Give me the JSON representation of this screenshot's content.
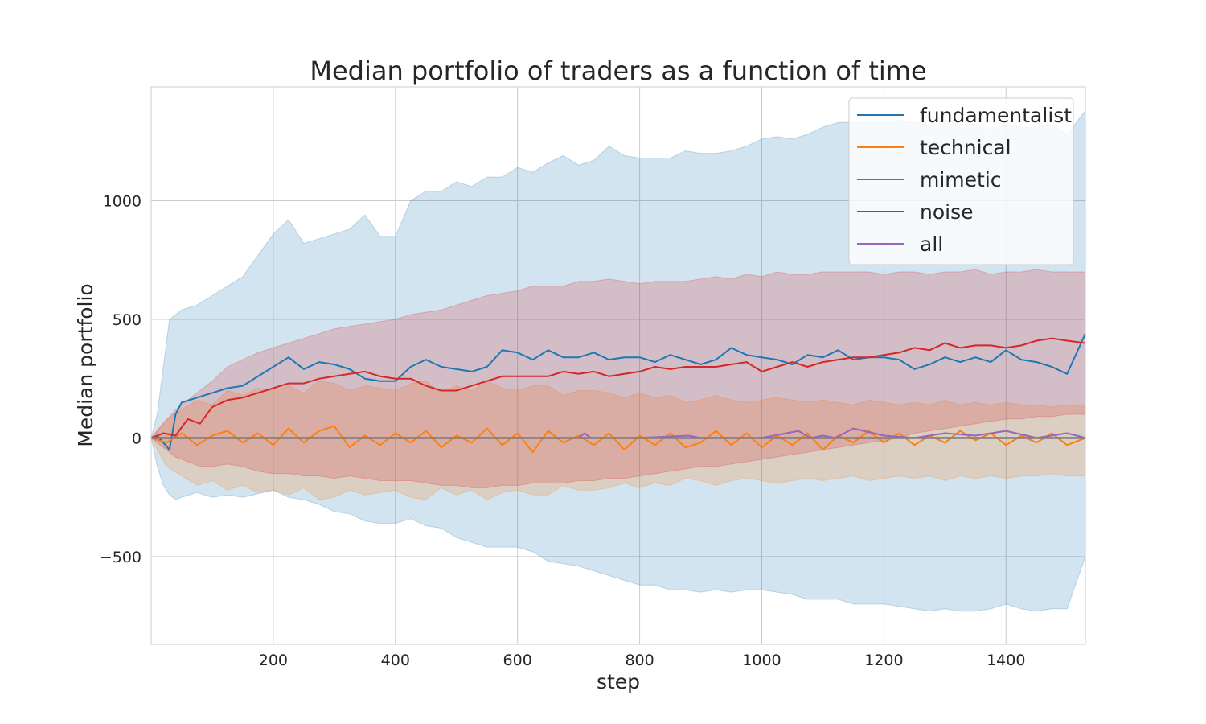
{
  "chart_data": {
    "type": "line",
    "title": "Median portfolio of traders as a function of time",
    "xlabel": "step",
    "ylabel": "Median portfolio",
    "xlim": [
      0,
      1530
    ],
    "ylim": [
      -870,
      1480
    ],
    "xticks": [
      200,
      400,
      600,
      800,
      1000,
      1200,
      1400
    ],
    "yticks": [
      -500,
      0,
      500,
      1000
    ],
    "ytick_labels": [
      "−500",
      "0",
      "500",
      "1000"
    ],
    "grid": true,
    "legend_position": "top-right",
    "series": [
      {
        "name": "fundamentalist",
        "color": "#1f77b4",
        "x": [
          0,
          10,
          20,
          30,
          40,
          50,
          75,
          100,
          125,
          150,
          200,
          225,
          250,
          275,
          300,
          325,
          350,
          375,
          400,
          425,
          450,
          475,
          500,
          525,
          550,
          575,
          600,
          625,
          650,
          675,
          700,
          725,
          750,
          775,
          800,
          825,
          850,
          875,
          900,
          925,
          950,
          975,
          1000,
          1025,
          1050,
          1075,
          1100,
          1125,
          1150,
          1175,
          1200,
          1225,
          1250,
          1275,
          1300,
          1325,
          1350,
          1375,
          1400,
          1425,
          1450,
          1475,
          1500,
          1530
        ],
        "values": [
          0,
          10,
          -20,
          -50,
          100,
          150,
          170,
          190,
          210,
          220,
          300,
          340,
          290,
          320,
          310,
          290,
          250,
          240,
          240,
          300,
          330,
          300,
          290,
          280,
          300,
          370,
          360,
          330,
          370,
          340,
          340,
          360,
          330,
          340,
          340,
          320,
          350,
          330,
          310,
          330,
          380,
          350,
          340,
          330,
          310,
          350,
          340,
          370,
          330,
          340,
          340,
          330,
          290,
          310,
          340,
          320,
          340,
          320,
          370,
          330,
          320,
          300,
          270,
          440
        ],
        "band_upper": [
          0,
          100,
          300,
          500,
          520,
          540,
          560,
          600,
          640,
          680,
          860,
          920,
          820,
          840,
          860,
          880,
          940,
          850,
          850,
          1000,
          1040,
          1040,
          1080,
          1060,
          1100,
          1100,
          1140,
          1120,
          1160,
          1190,
          1150,
          1170,
          1230,
          1190,
          1180,
          1180,
          1180,
          1210,
          1200,
          1200,
          1210,
          1230,
          1260,
          1270,
          1260,
          1280,
          1310,
          1330,
          1330,
          1330,
          1330,
          1340,
          1330,
          1320,
          1340,
          1320,
          1320,
          1300,
          1320,
          1310,
          1310,
          1320,
          1280,
          1380
        ],
        "band_lower": [
          0,
          -120,
          -200,
          -240,
          -260,
          -250,
          -230,
          -250,
          -240,
          -250,
          -220,
          -250,
          -260,
          -280,
          -310,
          -320,
          -350,
          -360,
          -360,
          -340,
          -370,
          -380,
          -420,
          -440,
          -460,
          -460,
          -460,
          -480,
          -520,
          -530,
          -540,
          -560,
          -580,
          -600,
          -620,
          -620,
          -640,
          -640,
          -650,
          -640,
          -650,
          -640,
          -640,
          -650,
          -660,
          -680,
          -680,
          -680,
          -700,
          -700,
          -700,
          -710,
          -720,
          -730,
          -720,
          -730,
          -730,
          -720,
          -700,
          -720,
          -730,
          -720,
          -720,
          -500
        ]
      },
      {
        "name": "technical",
        "color": "#ff7f0e",
        "x": [
          0,
          25,
          50,
          75,
          100,
          125,
          150,
          175,
          200,
          225,
          250,
          275,
          300,
          325,
          350,
          375,
          400,
          425,
          450,
          475,
          500,
          525,
          550,
          575,
          600,
          625,
          650,
          675,
          700,
          725,
          750,
          775,
          800,
          825,
          850,
          875,
          900,
          925,
          950,
          975,
          1000,
          1025,
          1050,
          1075,
          1100,
          1125,
          1150,
          1175,
          1200,
          1225,
          1250,
          1275,
          1300,
          1325,
          1350,
          1375,
          1400,
          1425,
          1450,
          1475,
          1500,
          1530
        ],
        "values": [
          0,
          -20,
          20,
          -30,
          10,
          30,
          -20,
          20,
          -30,
          40,
          -20,
          30,
          50,
          -40,
          10,
          -30,
          20,
          -20,
          30,
          -40,
          10,
          -20,
          40,
          -30,
          20,
          -60,
          30,
          -20,
          10,
          -30,
          20,
          -50,
          10,
          -30,
          20,
          -40,
          -20,
          30,
          -30,
          20,
          -40,
          10,
          -30,
          20,
          -50,
          10,
          -20,
          30,
          -20,
          20,
          -30,
          10,
          -20,
          30,
          -10,
          20,
          -30,
          10,
          -20,
          20,
          -30,
          0
        ],
        "band_upper": [
          0,
          80,
          120,
          160,
          140,
          200,
          180,
          210,
          200,
          220,
          190,
          240,
          230,
          200,
          220,
          210,
          200,
          230,
          240,
          190,
          220,
          200,
          240,
          210,
          200,
          220,
          220,
          180,
          200,
          200,
          190,
          170,
          190,
          170,
          180,
          150,
          160,
          180,
          160,
          150,
          160,
          170,
          160,
          150,
          160,
          150,
          140,
          160,
          150,
          140,
          150,
          140,
          160,
          140,
          150,
          140,
          150,
          140,
          140,
          130,
          140,
          140
        ],
        "band_lower": [
          0,
          -120,
          -160,
          -200,
          -180,
          -220,
          -200,
          -230,
          -220,
          -240,
          -210,
          -260,
          -250,
          -220,
          -240,
          -230,
          -220,
          -250,
          -260,
          -210,
          -240,
          -220,
          -260,
          -230,
          -220,
          -240,
          -240,
          -200,
          -220,
          -220,
          -210,
          -190,
          -210,
          -190,
          -200,
          -170,
          -180,
          -200,
          -180,
          -170,
          -180,
          -190,
          -180,
          -170,
          -180,
          -170,
          -160,
          -180,
          -170,
          -160,
          -170,
          -160,
          -180,
          -160,
          -170,
          -160,
          -170,
          -160,
          -160,
          -150,
          -160,
          -160
        ]
      },
      {
        "name": "mimetic",
        "color": "#2ca02c",
        "x": [
          0,
          1530
        ],
        "values": [
          0,
          0
        ]
      },
      {
        "name": "noise",
        "color": "#d62728",
        "x": [
          0,
          20,
          40,
          60,
          80,
          100,
          125,
          150,
          175,
          200,
          225,
          250,
          275,
          300,
          325,
          350,
          375,
          400,
          425,
          450,
          475,
          500,
          525,
          550,
          575,
          600,
          625,
          650,
          675,
          700,
          725,
          750,
          775,
          800,
          825,
          850,
          875,
          900,
          925,
          950,
          975,
          1000,
          1025,
          1050,
          1075,
          1100,
          1125,
          1150,
          1175,
          1200,
          1225,
          1250,
          1275,
          1300,
          1325,
          1350,
          1375,
          1400,
          1425,
          1450,
          1475,
          1500,
          1530
        ],
        "values": [
          0,
          20,
          10,
          80,
          60,
          130,
          160,
          170,
          190,
          210,
          230,
          230,
          250,
          260,
          270,
          280,
          260,
          250,
          250,
          220,
          200,
          200,
          220,
          240,
          260,
          260,
          260,
          260,
          280,
          270,
          280,
          260,
          270,
          280,
          300,
          290,
          300,
          300,
          300,
          310,
          320,
          280,
          300,
          320,
          300,
          320,
          330,
          340,
          340,
          350,
          360,
          380,
          370,
          400,
          380,
          390,
          390,
          380,
          390,
          410,
          420,
          410,
          400
        ],
        "band_upper": [
          0,
          60,
          120,
          160,
          200,
          240,
          300,
          330,
          360,
          380,
          400,
          420,
          440,
          460,
          470,
          480,
          490,
          500,
          520,
          530,
          540,
          560,
          580,
          600,
          610,
          620,
          640,
          640,
          640,
          660,
          660,
          670,
          660,
          650,
          660,
          660,
          660,
          670,
          680,
          670,
          690,
          680,
          700,
          690,
          690,
          700,
          700,
          700,
          700,
          690,
          700,
          700,
          690,
          700,
          700,
          710,
          690,
          700,
          700,
          710,
          700,
          700,
          700
        ],
        "band_lower": [
          0,
          -40,
          -80,
          -100,
          -120,
          -120,
          -110,
          -120,
          -140,
          -150,
          -150,
          -160,
          -160,
          -170,
          -160,
          -170,
          -180,
          -180,
          -180,
          -190,
          -200,
          -200,
          -210,
          -210,
          -200,
          -200,
          -190,
          -190,
          -190,
          -180,
          -180,
          -170,
          -170,
          -160,
          -150,
          -140,
          -130,
          -120,
          -120,
          -110,
          -100,
          -90,
          -80,
          -70,
          -60,
          -50,
          -40,
          -30,
          -20,
          -10,
          0,
          20,
          30,
          40,
          50,
          60,
          70,
          80,
          80,
          90,
          90,
          100,
          100
        ]
      },
      {
        "name": "all",
        "color": "#9467bd",
        "x": [
          0,
          100,
          200,
          300,
          400,
          500,
          600,
          700,
          710,
          720,
          800,
          880,
          900,
          1000,
          1060,
          1080,
          1100,
          1120,
          1150,
          1200,
          1250,
          1300,
          1350,
          1400,
          1450,
          1500,
          1530
        ],
        "values": [
          0,
          0,
          0,
          0,
          0,
          0,
          0,
          0,
          20,
          0,
          0,
          10,
          0,
          0,
          30,
          0,
          10,
          0,
          40,
          10,
          0,
          20,
          10,
          30,
          0,
          20,
          0
        ]
      }
    ]
  }
}
